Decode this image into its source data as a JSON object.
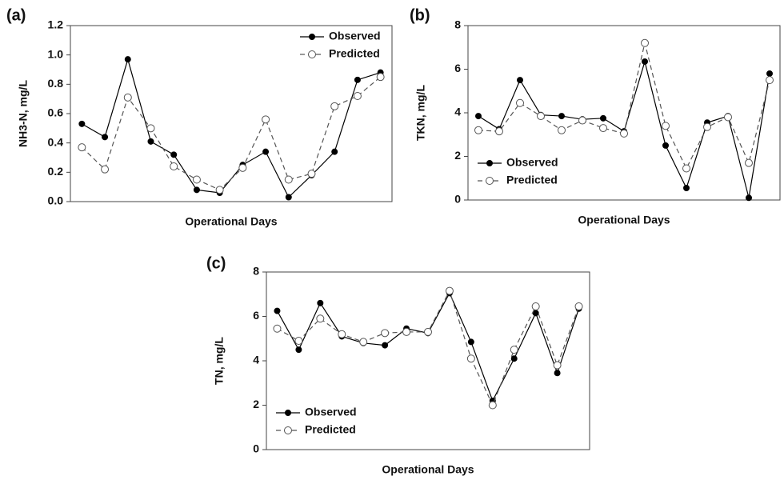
{
  "chart_data": [
    {
      "type": "line",
      "label": "(a)",
      "ylabel": "NH3-N, mg/L",
      "xlabel": "Operational Days",
      "categories": [
        null,
        null,
        null,
        null,
        null,
        null,
        null,
        null,
        null,
        null,
        null,
        null,
        null,
        null
      ],
      "ylim": [
        0,
        1.2
      ],
      "yticks": [
        {
          "value": 0,
          "label": "0.0"
        },
        0.2,
        0.4,
        0.6,
        0.8,
        {
          "value": 1,
          "label": "1.0"
        },
        1.2
      ],
      "legend": "upper right",
      "series": [
        {
          "name": "Observed",
          "color": "#000000",
          "dashed": false,
          "marker": "filled",
          "values": [
            0.53,
            0.44,
            0.97,
            0.41,
            0.32,
            0.08,
            0.06,
            0.25,
            0.34,
            0.03,
            0.18,
            0.34,
            0.83,
            0.88
          ]
        },
        {
          "name": "Predicted",
          "color": "#555555",
          "dashed": true,
          "marker": "open",
          "values": [
            0.37,
            0.22,
            0.71,
            0.5,
            0.24,
            0.15,
            0.08,
            0.23,
            0.56,
            0.15,
            0.19,
            0.65,
            0.72,
            0.85
          ]
        }
      ]
    },
    {
      "type": "line",
      "label": "(b)",
      "ylabel": "TKN, mg/L",
      "xlabel": "Operational Days",
      "categories": [
        null,
        null,
        null,
        null,
        null,
        null,
        null,
        null,
        null,
        null,
        null,
        null,
        null,
        null,
        null
      ],
      "ylim": [
        0,
        8
      ],
      "yticks": [
        0,
        2,
        4,
        6,
        8
      ],
      "legend": "lower left",
      "series": [
        {
          "name": "Observed",
          "color": "#000000",
          "dashed": false,
          "marker": "filled",
          "values": [
            3.85,
            3.25,
            5.5,
            3.9,
            3.85,
            3.7,
            3.75,
            3.15,
            6.35,
            2.5,
            0.55,
            3.55,
            3.85,
            0.1,
            5.8
          ]
        },
        {
          "name": "Predicted",
          "color": "#555555",
          "dashed": true,
          "marker": "open",
          "values": [
            3.2,
            3.15,
            4.45,
            3.85,
            3.2,
            3.65,
            3.3,
            3.05,
            7.2,
            3.4,
            1.45,
            3.35,
            3.8,
            1.7,
            5.5
          ]
        }
      ]
    },
    {
      "type": "line",
      "label": "(c)",
      "ylabel": "TN, mg/L",
      "xlabel": "Operational Days",
      "categories": [
        null,
        null,
        null,
        null,
        null,
        null,
        null,
        null,
        null,
        null,
        null,
        null,
        null,
        null,
        null
      ],
      "ylim": [
        0,
        8
      ],
      "yticks": [
        0,
        2,
        4,
        6,
        8
      ],
      "legend": "lower left",
      "series": [
        {
          "name": "Observed",
          "color": "#000000",
          "dashed": false,
          "marker": "filled",
          "values": [
            6.25,
            4.5,
            6.6,
            5.1,
            4.8,
            4.7,
            5.45,
            5.25,
            7.05,
            4.85,
            2.2,
            4.1,
            6.15,
            3.45,
            6.35
          ]
        },
        {
          "name": "Predicted",
          "color": "#555555",
          "dashed": true,
          "marker": "open",
          "values": [
            5.45,
            4.9,
            5.9,
            5.2,
            4.85,
            5.25,
            5.3,
            5.3,
            7.15,
            4.1,
            2.0,
            4.5,
            6.45,
            3.8,
            6.45
          ]
        }
      ]
    }
  ]
}
